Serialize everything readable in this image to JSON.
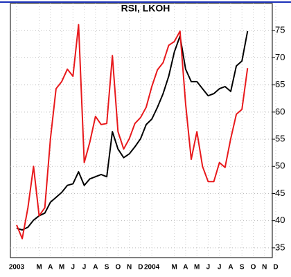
{
  "chart_data": {
    "type": "line",
    "title": "RSI, LKOH",
    "categories": [
      "2003",
      null,
      null,
      null,
      "M",
      null,
      "A",
      null,
      "M",
      null,
      "J",
      null,
      "J",
      null,
      "A",
      null,
      "S",
      null,
      "O",
      null,
      "N",
      null,
      "D",
      null,
      "2004",
      null,
      null,
      null,
      "M",
      null,
      "A",
      null,
      "M",
      null,
      "J",
      null,
      "J",
      null,
      "A",
      null,
      "S",
      null,
      "O",
      null,
      "N",
      null,
      "D",
      null
    ],
    "series": [
      {
        "name": "RSI black",
        "color": "#000000",
        "values": [
          38.6,
          38.3,
          38.8,
          40.1,
          40.9,
          41.4,
          43.4,
          44.3,
          45.2,
          46.5,
          46.8,
          49.0,
          46.5,
          47.7,
          48.1,
          48.5,
          48.1,
          56.4,
          53.2,
          51.6,
          52.3,
          53.6,
          55.1,
          57.7,
          58.7,
          60.9,
          63.4,
          66.6,
          71.1,
          74.0,
          67.9,
          65.6,
          65.6,
          64.3,
          63.0,
          63.4,
          64.3,
          64.7,
          63.8,
          68.5,
          69.4,
          74.9,
          null,
          null,
          null,
          null,
          null,
          null
        ]
      },
      {
        "name": "RSI red",
        "color": "#e8191c",
        "values": [
          39.2,
          36.7,
          42.4,
          50.0,
          40.9,
          42.4,
          55.1,
          64.3,
          65.6,
          67.9,
          66.6,
          76.1,
          50.7,
          54.5,
          59.2,
          57.7,
          57.9,
          70.4,
          56.4,
          53.2,
          55.1,
          57.9,
          59.0,
          60.9,
          64.7,
          67.8,
          69.1,
          72.3,
          73.0,
          74.9,
          61.5,
          51.3,
          56.4,
          50.0,
          47.2,
          47.2,
          50.7,
          49.8,
          55.1,
          59.6,
          60.5,
          68.1,
          null,
          null,
          null,
          null,
          null,
          null
        ]
      }
    ],
    "ylim": [
      33.2,
      80
    ],
    "yticks": [
      35,
      40,
      45,
      50,
      55,
      60,
      65,
      70,
      75
    ],
    "grid": true
  }
}
